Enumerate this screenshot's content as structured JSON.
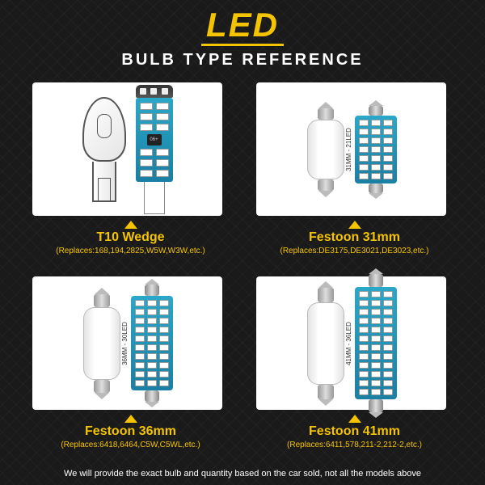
{
  "colors": {
    "accent": "#f5c400",
    "board": "#1a7fa3",
    "bg": "#1a1a1a"
  },
  "header": {
    "line1": "LED",
    "line2": "BULB TYPE REFERENCE"
  },
  "cells": [
    {
      "name": "T10 Wedge",
      "replaces": "(Replaces:168,194,2825,W5W,W3W,etc.)",
      "side_label": "",
      "led_rows": 3,
      "led_cols": 2,
      "glass_body_h": 0,
      "cap_h": 0
    },
    {
      "name": "Festoon 31mm",
      "replaces": "(Replaces:DE3175,DE3021,DE3023,etc.)",
      "side_label": "31MM - 21LED",
      "led_rows": 7,
      "led_cols": 3,
      "glass_body_h": 74,
      "cap_h": 14
    },
    {
      "name": "Festoon 36mm",
      "replaces": "(Replaces:6418,6464,C5W,C5WL,etc.)",
      "side_label": "36MM - 30LED",
      "led_rows": 10,
      "led_cols": 3,
      "glass_body_h": 90,
      "cap_h": 16
    },
    {
      "name": "Festoon 41mm",
      "replaces": "(Replaces:6411,578,211-2,212-2,etc.)",
      "side_label": "41MM - 36LED",
      "led_rows": 12,
      "led_cols": 3,
      "glass_body_h": 102,
      "cap_h": 18
    }
  ],
  "footer": "We will provide the exact bulb and quantity based on the car sold, not all the models above"
}
